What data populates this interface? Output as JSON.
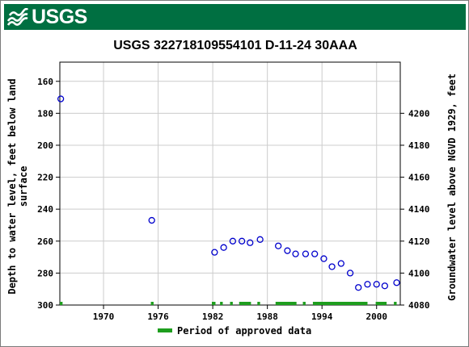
{
  "banner": {
    "logo_text": "USGS",
    "background_color": "#006f41",
    "logo_icon": "usgs-wave-icon"
  },
  "chart_data": {
    "type": "scatter",
    "title": "USGS 322718109554101 D-11-24 30AAA",
    "ylabel_left_lines": [
      "Depth to water level, feet below land",
      "surface"
    ],
    "ylabel_right": "Groundwater level above NGVD 1929, feet",
    "xlim": [
      1965.2,
      2002.6
    ],
    "ylim_left": [
      300,
      148
    ],
    "x_ticks": [
      {
        "value": 1970,
        "label": "1970"
      },
      {
        "value": 1976,
        "label": "1976"
      },
      {
        "value": 1982,
        "label": "1982"
      },
      {
        "value": 1988,
        "label": "1988"
      },
      {
        "value": 1994,
        "label": "1994"
      },
      {
        "value": 2000,
        "label": "2000"
      }
    ],
    "y_ticks_left": [
      {
        "value": 160,
        "label": "160"
      },
      {
        "value": 180,
        "label": "180"
      },
      {
        "value": 200,
        "label": "200"
      },
      {
        "value": 220,
        "label": "220"
      },
      {
        "value": 240,
        "label": "240"
      },
      {
        "value": 260,
        "label": "260"
      },
      {
        "value": 280,
        "label": "280"
      },
      {
        "value": 300,
        "label": "300"
      }
    ],
    "y_ticks_right": [
      {
        "value": 4080,
        "label": "4080"
      },
      {
        "value": 4100,
        "label": "4100"
      },
      {
        "value": 4120,
        "label": "4120"
      },
      {
        "value": 4140,
        "label": "4140"
      },
      {
        "value": 4160,
        "label": "4160"
      },
      {
        "value": 4180,
        "label": "4180"
      },
      {
        "value": 4200,
        "label": "4200"
      }
    ],
    "right_axis_offset": 4380,
    "grid": true,
    "point_color": "#0000cc",
    "series": [
      {
        "x": [
          1965.3,
          1975.3,
          1982.2,
          1983.2,
          1984.2,
          1985.2,
          1986.1,
          1987.2,
          1989.2,
          1990.2,
          1991.1,
          1992.2,
          1993.2,
          1994.2,
          1995.1,
          1996.1,
          1997.1,
          1998.0,
          1999.0,
          2000.0,
          2000.9,
          2002.2
        ],
        "y": [
          171,
          247,
          267,
          264,
          260,
          260,
          261,
          259,
          263,
          266,
          268,
          268,
          268,
          271,
          276,
          274,
          280,
          289,
          287,
          287,
          288,
          286
        ]
      }
    ],
    "approved_periods": [
      [
        1965.2,
        1965.5
      ],
      [
        1975.2,
        1975.5
      ],
      [
        1981.9,
        1982.3
      ],
      [
        1982.8,
        1983.1
      ],
      [
        1983.9,
        1984.2
      ],
      [
        1984.9,
        1986.2
      ],
      [
        1986.9,
        1987.2
      ],
      [
        1988.9,
        1991.2
      ],
      [
        1991.9,
        1992.2
      ],
      [
        1993.0,
        1999.0
      ],
      [
        1999.9,
        2001.1
      ],
      [
        2001.9,
        2002.2
      ]
    ],
    "approved_color": "#1e9e1e",
    "legend": {
      "label": "Period of approved data",
      "position": "bottom"
    }
  }
}
